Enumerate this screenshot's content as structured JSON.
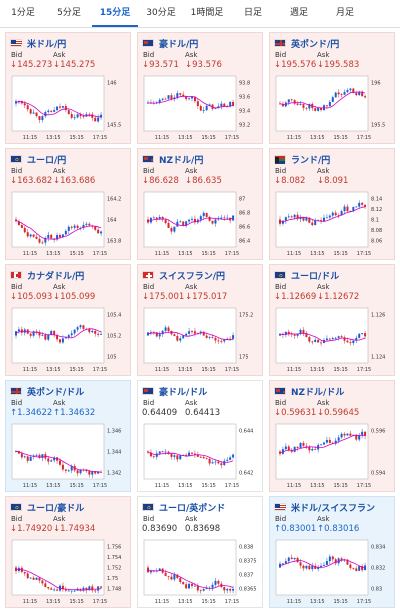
{
  "tabs": [
    {
      "label": "1分足",
      "active": false
    },
    {
      "label": "5分足",
      "active": false
    },
    {
      "label": "15分足",
      "active": true
    },
    {
      "label": "30分足",
      "active": false
    },
    {
      "label": "1時間足",
      "active": false
    },
    {
      "label": "日足",
      "active": false
    },
    {
      "label": "週足",
      "active": false
    },
    {
      "label": "月足",
      "active": false
    }
  ],
  "labels": {
    "bid": "Bid",
    "ask": "Ask"
  },
  "colors": {
    "up_candle": "#1a5fd0",
    "down_candle": "#d62a2a",
    "ma_line": "#d400c8",
    "down_text": "#c0392b",
    "up_text": "#1a66c9"
  },
  "cards": [
    {
      "pair": "米ドル/円",
      "flag": "us",
      "trend": "down",
      "bid": "↓145.273",
      "ask": "↓145.275",
      "y_ticks": [
        "146",
        "145.5"
      ],
      "x_ticks": [
        "11:15",
        "13:15",
        "15:15",
        "17:15"
      ]
    },
    {
      "pair": "豪ドル/円",
      "flag": "au",
      "trend": "down",
      "bid": "↓93.571",
      "ask": "↓93.576",
      "y_ticks": [
        "93.8",
        "93.6",
        "93.4",
        "93.2"
      ],
      "x_ticks": [
        "11:15",
        "13:15",
        "15:15",
        "17:15"
      ]
    },
    {
      "pair": "英ポンド/円",
      "flag": "gb",
      "trend": "down",
      "bid": "↓195.576",
      "ask": "↓195.583",
      "y_ticks": [
        "196",
        "195.5"
      ],
      "x_ticks": [
        "11:15",
        "13:15",
        "15:15",
        "17:15"
      ]
    },
    {
      "pair": "ユーロ/円",
      "flag": "eu",
      "trend": "down",
      "bid": "↓163.682",
      "ask": "↓163.686",
      "y_ticks": [
        "164.2",
        "164",
        "163.8"
      ],
      "x_ticks": [
        "11:15",
        "13:15",
        "15:15",
        "17:15"
      ]
    },
    {
      "pair": "NZドル/円",
      "flag": "nz",
      "trend": "down",
      "bid": "↓86.628",
      "ask": "↓86.635",
      "y_ticks": [
        "87",
        "86.8",
        "86.6",
        "86.4"
      ],
      "x_ticks": [
        "11:15",
        "13:15",
        "15:15",
        "17:15"
      ]
    },
    {
      "pair": "ランド/円",
      "flag": "za",
      "trend": "down",
      "bid": "↓8.082",
      "ask": "↓8.091",
      "y_ticks": [
        "8.14",
        "8.12",
        "8.1",
        "8.08",
        "8.06"
      ],
      "x_ticks": [
        "11:15",
        "13:15",
        "15:15",
        "17:15"
      ]
    },
    {
      "pair": "カナダドル/円",
      "flag": "ca",
      "trend": "down",
      "bid": "↓105.093",
      "ask": "↓105.099",
      "y_ticks": [
        "105.4",
        "105.2",
        "105"
      ],
      "x_ticks": [
        "11:15",
        "13:15",
        "15:15",
        "17:15"
      ]
    },
    {
      "pair": "スイスフラン/円",
      "flag": "ch",
      "trend": "down",
      "bid": "↓175.001",
      "ask": "↓175.017",
      "y_ticks": [
        "175.2",
        "175"
      ],
      "x_ticks": [
        "11:15",
        "13:15",
        "15:15",
        "17:15"
      ]
    },
    {
      "pair": "ユーロ/ドル",
      "flag": "eu",
      "trend": "down",
      "bid": "↓1.12669",
      "ask": "↓1.12672",
      "y_ticks": [
        "1.126",
        "1.124"
      ],
      "x_ticks": [
        "11:15",
        "13:15",
        "15:15",
        "17:15"
      ]
    },
    {
      "pair": "英ポンド/ドル",
      "flag": "gb",
      "trend": "up",
      "bid": "↑1.34622",
      "ask": "↑1.34632",
      "y_ticks": [
        "1.346",
        "1.344",
        "1.342"
      ],
      "x_ticks": [
        "11:15",
        "13:15",
        "15:15",
        "17:15"
      ]
    },
    {
      "pair": "豪ドル/ドル",
      "flag": "au",
      "trend": "flat",
      "bid": "0.64409",
      "ask": "0.64413",
      "y_ticks": [
        "0.644",
        "0.642"
      ],
      "x_ticks": [
        "11:15",
        "13:15",
        "15:15",
        "17:15"
      ]
    },
    {
      "pair": "NZドル/ドル",
      "flag": "nz",
      "trend": "down",
      "bid": "↓0.59631",
      "ask": "↓0.59645",
      "y_ticks": [
        "0.596",
        "0.594"
      ],
      "x_ticks": [
        "11:15",
        "13:15",
        "15:15",
        "17:15"
      ]
    },
    {
      "pair": "ユーロ/豪ドル",
      "flag": "eu",
      "trend": "down",
      "bid": "↓1.74920",
      "ask": "↓1.74934",
      "y_ticks": [
        "1.756",
        "1.754",
        "1.752",
        "1.75",
        "1.748"
      ],
      "x_ticks": [
        "11:15",
        "13:15",
        "15:15",
        "17:15"
      ]
    },
    {
      "pair": "ユーロ/英ポンド",
      "flag": "eu",
      "trend": "flat",
      "bid": "0.83690",
      "ask": "0.83698",
      "y_ticks": [
        "0.838",
        "0.8375",
        "0.837",
        "0.8365"
      ],
      "x_ticks": [
        "11:15",
        "13:15",
        "15:15",
        "17:15"
      ]
    },
    {
      "pair": "米ドル/スイスフラン",
      "flag": "us",
      "trend": "up",
      "bid": "↑0.83001",
      "ask": "↑0.83016",
      "y_ticks": [
        "0.834",
        "0.832",
        "0.83"
      ],
      "x_ticks": [
        "11:15",
        "13:15",
        "15:15",
        "17:15"
      ]
    }
  ]
}
